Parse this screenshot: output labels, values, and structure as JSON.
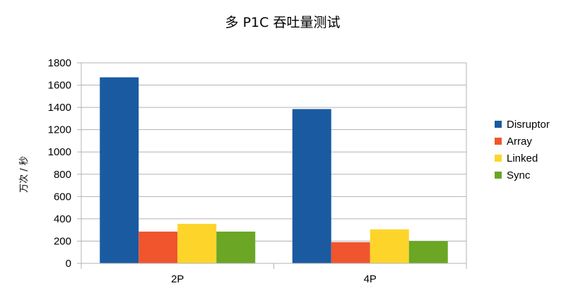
{
  "chart_data": {
    "type": "bar",
    "title": "多 P1C 吞吐量测试",
    "ylabel": "万次 / 秒",
    "xlabel": "",
    "categories": [
      "2P",
      "4P"
    ],
    "ylim": [
      0,
      1800
    ],
    "yticks": [
      0,
      200,
      400,
      600,
      800,
      1000,
      1200,
      1400,
      1600,
      1800
    ],
    "grid": true,
    "legend_position": "right",
    "series": [
      {
        "name": "Disruptor",
        "color": "#1a5aa0",
        "values": [
          1670,
          1385
        ]
      },
      {
        "name": "Array",
        "color": "#f0552d",
        "values": [
          285,
          190
        ]
      },
      {
        "name": "Linked",
        "color": "#fdd52a",
        "values": [
          355,
          305
        ]
      },
      {
        "name": "Sync",
        "color": "#6ba624",
        "values": [
          285,
          200
        ]
      }
    ]
  }
}
